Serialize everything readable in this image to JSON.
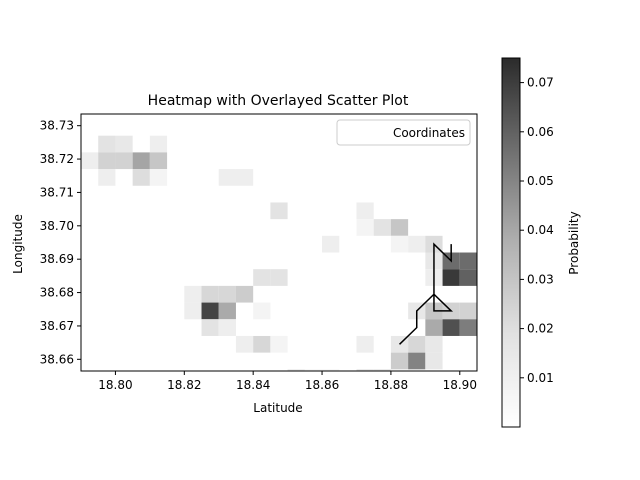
{
  "chart_data": {
    "type": "heatmap",
    "title": "Heatmap with Overlayed Scatter Plot",
    "xlabel": "Latitude",
    "ylabel": "Longitude",
    "colorbar_label": "Probability",
    "xlim": [
      18.79,
      18.905
    ],
    "ylim": [
      38.6565,
      38.7335
    ],
    "x_ticks": [
      18.8,
      18.82,
      18.84,
      18.86,
      18.88,
      18.9
    ],
    "x_tick_labels": [
      "18.80",
      "18.82",
      "18.84",
      "18.86",
      "18.88",
      "18.90"
    ],
    "y_ticks": [
      38.66,
      38.67,
      38.68,
      38.69,
      38.7,
      38.71,
      38.72,
      38.73
    ],
    "y_tick_labels": [
      "38.66",
      "38.67",
      "38.68",
      "38.69",
      "38.70",
      "38.71",
      "38.72",
      "38.73"
    ],
    "colorbar_range": [
      0,
      0.075
    ],
    "colorbar_ticks": [
      0.01,
      0.02,
      0.03,
      0.04,
      0.05,
      0.06,
      0.07
    ],
    "colorbar_tick_labels": [
      "0.01",
      "0.02",
      "0.03",
      "0.04",
      "0.05",
      "0.06",
      "0.07"
    ],
    "colormap": "Greys",
    "grid": false,
    "legend": {
      "position": "top-right",
      "entries": [
        "Coordinates"
      ]
    },
    "cell_size": {
      "dx": 0.005,
      "dy": 0.005
    },
    "cells": [
      [
        18.7925,
        38.7195,
        0.006
      ],
      [
        18.7975,
        38.7245,
        0.01
      ],
      [
        18.7975,
        38.7195,
        0.016
      ],
      [
        18.7975,
        38.7145,
        0.006
      ],
      [
        18.8025,
        38.7245,
        0.008
      ],
      [
        18.8025,
        38.7195,
        0.016
      ],
      [
        18.8075,
        38.7195,
        0.032
      ],
      [
        18.8075,
        38.7145,
        0.012
      ],
      [
        18.8125,
        38.7245,
        0.006
      ],
      [
        18.8125,
        38.7195,
        0.02
      ],
      [
        18.8125,
        38.7145,
        0.004
      ],
      [
        18.8325,
        38.7145,
        0.006
      ],
      [
        18.8375,
        38.7145,
        0.006
      ],
      [
        18.8475,
        38.7045,
        0.01
      ],
      [
        18.8625,
        38.6945,
        0.006
      ],
      [
        18.8725,
        38.7045,
        0.006
      ],
      [
        18.8725,
        38.6995,
        0.004
      ],
      [
        18.8775,
        38.6995,
        0.01
      ],
      [
        18.8825,
        38.6995,
        0.02
      ],
      [
        18.8825,
        38.6945,
        0.004
      ],
      [
        18.8875,
        38.6945,
        0.006
      ],
      [
        18.8925,
        38.6945,
        0.012
      ],
      [
        18.8925,
        38.6895,
        0.008
      ],
      [
        18.8925,
        38.6845,
        0.006
      ],
      [
        18.8975,
        38.6895,
        0.052
      ],
      [
        18.8975,
        38.6845,
        0.07
      ],
      [
        18.9025,
        38.6895,
        0.052
      ],
      [
        18.9025,
        38.6845,
        0.056
      ],
      [
        18.8425,
        38.6845,
        0.01
      ],
      [
        18.8475,
        38.6845,
        0.01
      ],
      [
        18.8225,
        38.6795,
        0.006
      ],
      [
        18.8275,
        38.6795,
        0.014
      ],
      [
        18.8325,
        38.6795,
        0.014
      ],
      [
        18.8375,
        38.6795,
        0.018
      ],
      [
        18.8225,
        38.6745,
        0.006
      ],
      [
        18.8275,
        38.6745,
        0.066
      ],
      [
        18.8325,
        38.6745,
        0.03
      ],
      [
        18.8425,
        38.6745,
        0.004
      ],
      [
        18.8275,
        38.6695,
        0.01
      ],
      [
        18.8325,
        38.6695,
        0.006
      ],
      [
        18.8375,
        38.6645,
        0.006
      ],
      [
        18.8425,
        38.6645,
        0.014
      ],
      [
        18.8475,
        38.6645,
        0.004
      ],
      [
        18.8725,
        38.6645,
        0.006
      ],
      [
        18.8875,
        38.6745,
        0.008
      ],
      [
        18.8925,
        38.6745,
        0.02
      ],
      [
        18.8975,
        38.6745,
        0.016
      ],
      [
        18.9025,
        38.6745,
        0.016
      ],
      [
        18.9075,
        38.6745,
        0.004
      ],
      [
        18.8925,
        38.6695,
        0.03
      ],
      [
        18.8975,
        38.6695,
        0.062
      ],
      [
        18.9025,
        38.6695,
        0.046
      ],
      [
        18.8825,
        38.6645,
        0.008
      ],
      [
        18.8875,
        38.6645,
        0.014
      ],
      [
        18.8925,
        38.6645,
        0.008
      ],
      [
        18.8825,
        38.6595,
        0.018
      ],
      [
        18.8875,
        38.6595,
        0.044
      ],
      [
        18.8925,
        38.6595,
        0.008
      ],
      [
        18.8525,
        38.6545,
        0.008
      ],
      [
        18.8575,
        38.6545,
        0.004
      ],
      [
        18.8625,
        38.6545,
        0.004
      ],
      [
        18.8725,
        38.6545,
        0.01
      ],
      [
        18.8775,
        38.6545,
        0.01
      ]
    ],
    "series": [
      {
        "type": "line",
        "x": [
          18.8825,
          18.8875,
          18.8875,
          18.8925,
          18.8975,
          18.8925,
          18.8925,
          18.8975,
          18.8925,
          18.8925,
          18.8975,
          18.8975
        ],
        "y": [
          38.6645,
          38.6695,
          38.6745,
          38.6795,
          38.6745,
          38.6745,
          38.6795,
          38.6745,
          38.6795,
          38.6945,
          38.6895,
          38.6945
        ]
      }
    ]
  }
}
